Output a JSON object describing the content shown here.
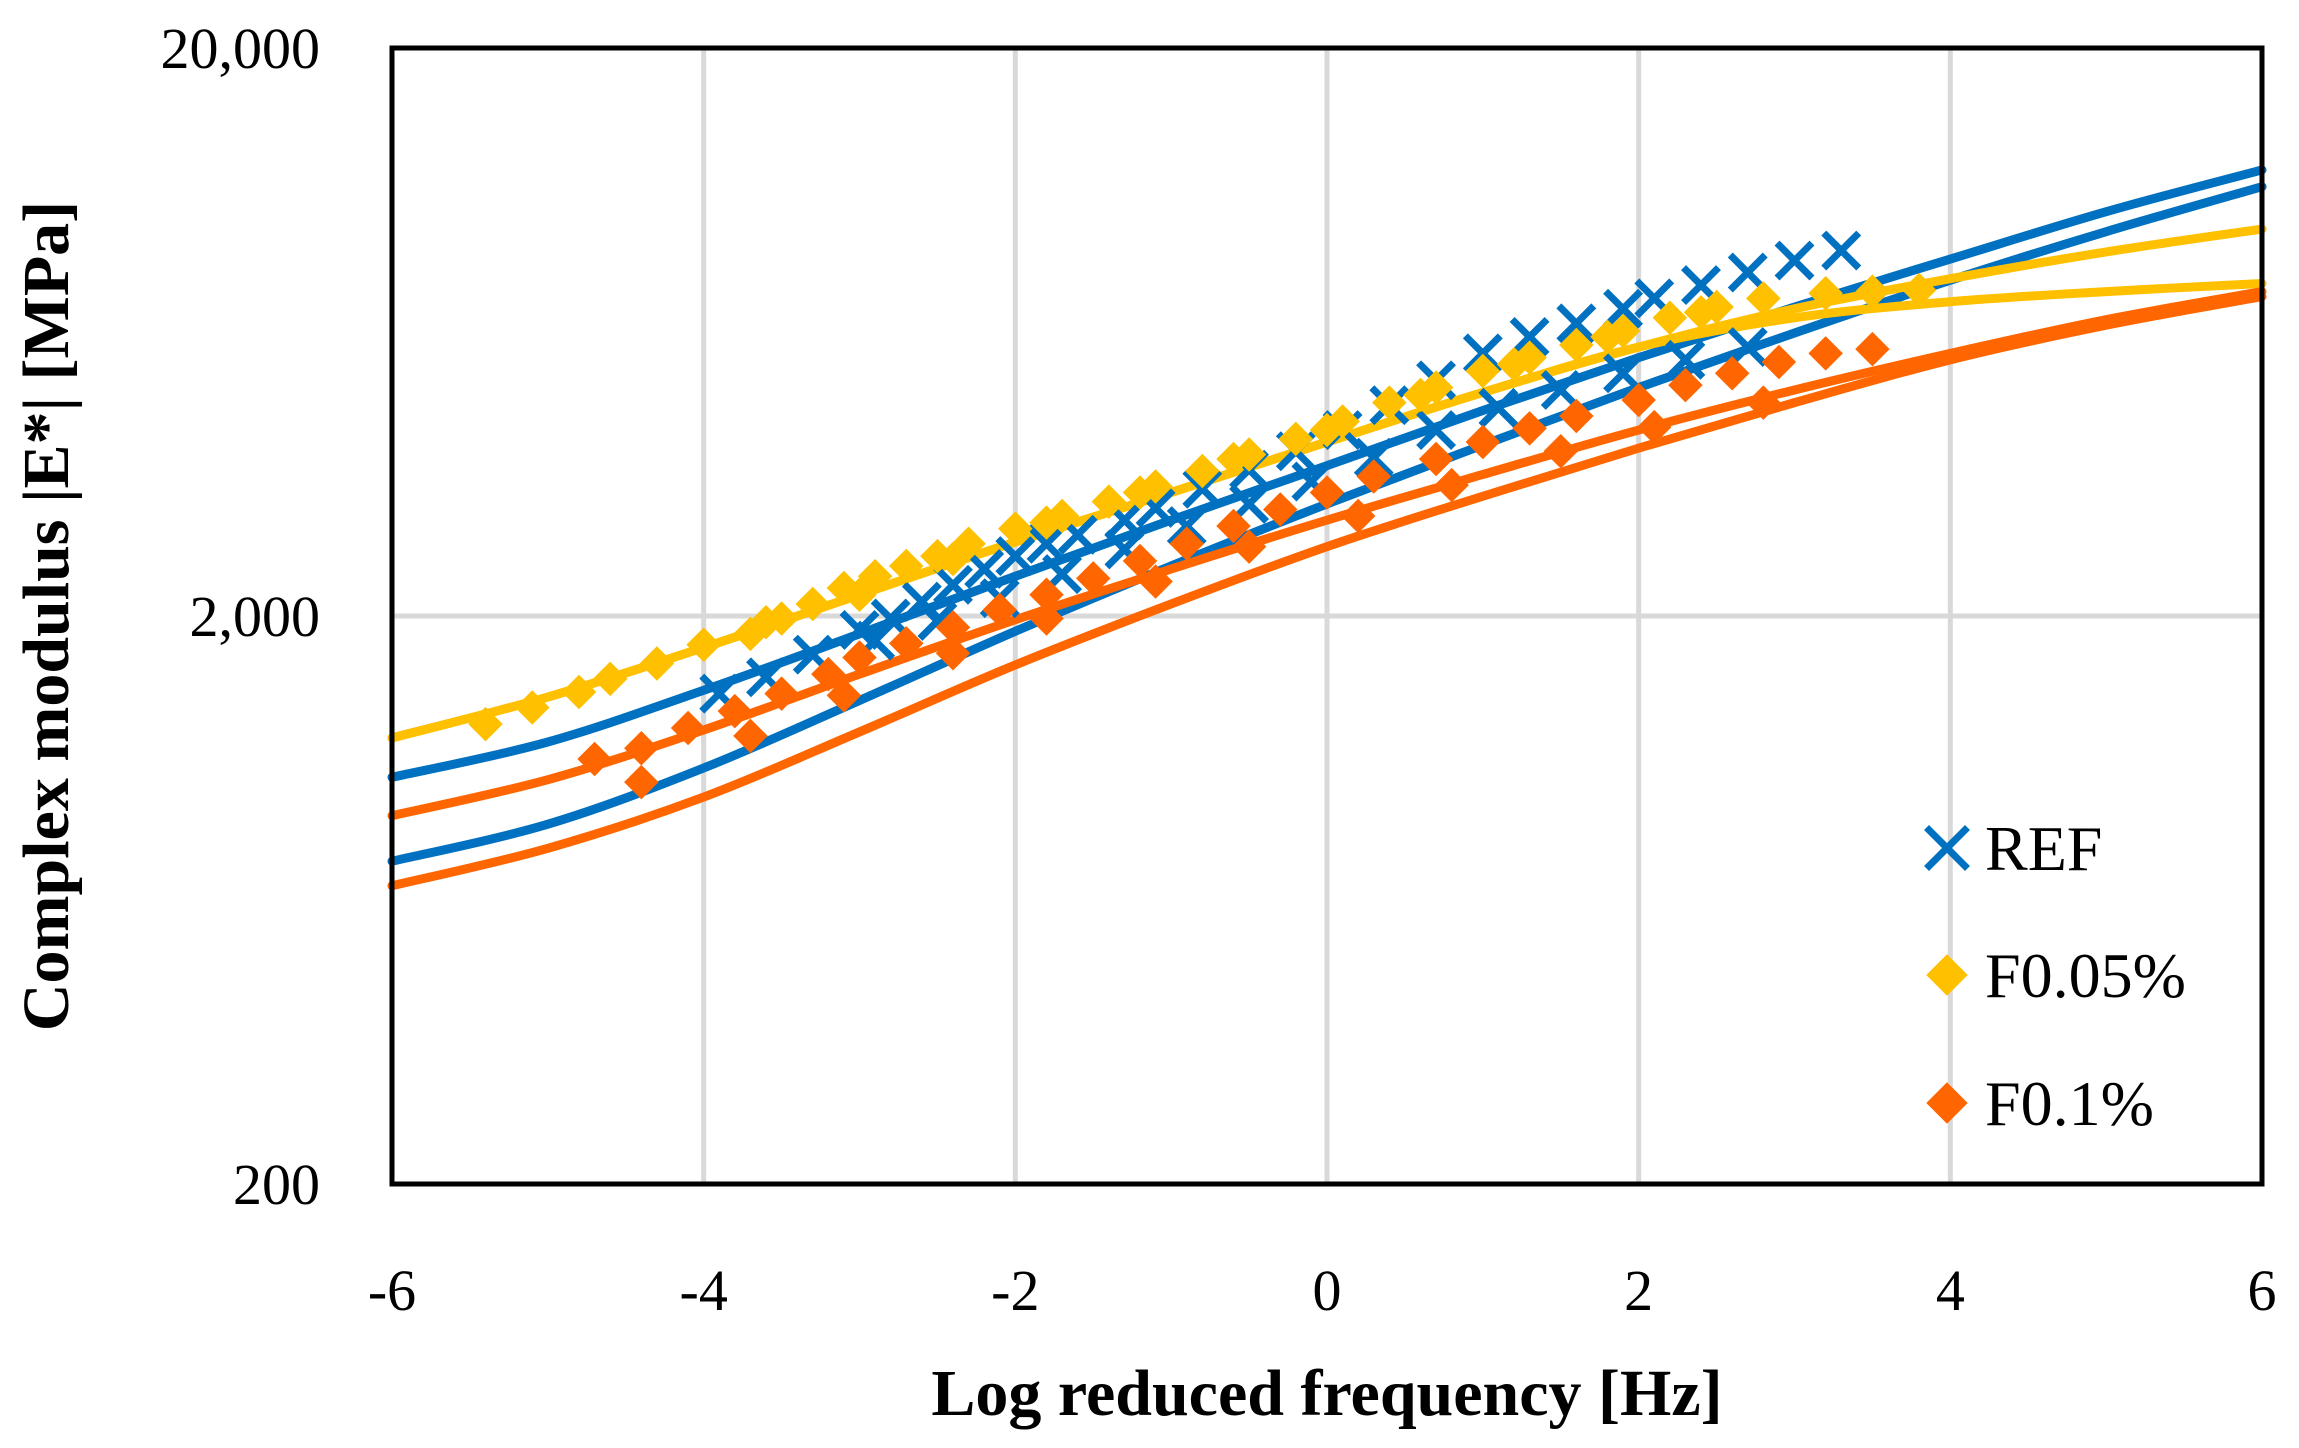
{
  "chart_data": {
    "type": "scatter",
    "title": "",
    "xlabel": "Log reduced frequency [Hz]",
    "ylabel": "Complex modulus |E*| [MPa]",
    "xlim": [
      -6,
      6
    ],
    "ylim": [
      200,
      20000
    ],
    "yscale": "log",
    "grid": true,
    "legend_position": "bottom-right",
    "x_ticks": [
      "-6",
      "-4",
      "-2",
      "0",
      "2",
      "4",
      "6"
    ],
    "y_ticks": [
      "200",
      "2,000",
      "20,000"
    ],
    "series": [
      {
        "name": "REF",
        "color": "#0070C0",
        "marker": "x",
        "points": [
          {
            "x": -3.9,
            "y": 1460
          },
          {
            "x": -3.6,
            "y": 1560
          },
          {
            "x": -3.3,
            "y": 1710
          },
          {
            "x": -3.0,
            "y": 1890
          },
          {
            "x": -2.8,
            "y": 1980
          },
          {
            "x": -2.6,
            "y": 2120
          },
          {
            "x": -2.4,
            "y": 2270
          },
          {
            "x": -2.2,
            "y": 2420
          },
          {
            "x": -2.0,
            "y": 2550
          },
          {
            "x": -1.8,
            "y": 2680
          },
          {
            "x": -1.6,
            "y": 2780
          },
          {
            "x": -1.3,
            "y": 2950
          },
          {
            "x": -1.1,
            "y": 3100
          },
          {
            "x": -0.8,
            "y": 3350
          },
          {
            "x": -0.5,
            "y": 3620
          },
          {
            "x": -0.2,
            "y": 3900
          },
          {
            "x": 0.1,
            "y": 4250
          },
          {
            "x": 0.4,
            "y": 4700
          },
          {
            "x": 0.7,
            "y": 5200
          },
          {
            "x": 1.0,
            "y": 5800
          },
          {
            "x": 1.3,
            "y": 6200
          },
          {
            "x": 1.6,
            "y": 6550
          },
          {
            "x": 1.9,
            "y": 6950
          },
          {
            "x": 2.1,
            "y": 7250
          },
          {
            "x": 2.4,
            "y": 7650
          },
          {
            "x": 2.7,
            "y": 8050
          },
          {
            "x": 3.0,
            "y": 8450
          },
          {
            "x": 3.3,
            "y": 8800
          },
          {
            "x": -2.9,
            "y": 1810
          },
          {
            "x": -2.5,
            "y": 1960
          },
          {
            "x": -2.1,
            "y": 2150
          },
          {
            "x": -1.7,
            "y": 2370
          },
          {
            "x": -1.3,
            "y": 2620
          },
          {
            "x": -0.9,
            "y": 2880
          },
          {
            "x": -0.5,
            "y": 3150
          },
          {
            "x": -0.1,
            "y": 3450
          },
          {
            "x": 0.3,
            "y": 3800
          },
          {
            "x": 0.7,
            "y": 4250
          },
          {
            "x": 1.1,
            "y": 4650
          },
          {
            "x": 1.5,
            "y": 5000
          },
          {
            "x": 1.9,
            "y": 5350
          },
          {
            "x": 2.3,
            "y": 5650
          },
          {
            "x": 2.7,
            "y": 5950
          }
        ]
      },
      {
        "name": "F0.05%",
        "color": "#FFC000",
        "marker": "diamond",
        "points": [
          {
            "x": -5.4,
            "y": 1290
          },
          {
            "x": -5.1,
            "y": 1380
          },
          {
            "x": -4.8,
            "y": 1470
          },
          {
            "x": -4.6,
            "y": 1550
          },
          {
            "x": -4.3,
            "y": 1650
          },
          {
            "x": -4.0,
            "y": 1780
          },
          {
            "x": -3.7,
            "y": 1860
          },
          {
            "x": -3.5,
            "y": 1980
          },
          {
            "x": -3.3,
            "y": 2100
          },
          {
            "x": -3.1,
            "y": 2240
          },
          {
            "x": -2.9,
            "y": 2350
          },
          {
            "x": -2.7,
            "y": 2450
          },
          {
            "x": -2.5,
            "y": 2550
          },
          {
            "x": -2.3,
            "y": 2680
          },
          {
            "x": -2.0,
            "y": 2850
          },
          {
            "x": -1.7,
            "y": 3000
          },
          {
            "x": -1.4,
            "y": 3180
          },
          {
            "x": -1.1,
            "y": 3380
          },
          {
            "x": -0.8,
            "y": 3600
          },
          {
            "x": -0.5,
            "y": 3850
          },
          {
            "x": -0.2,
            "y": 4100
          },
          {
            "x": 0.1,
            "y": 4400
          },
          {
            "x": 0.4,
            "y": 4750
          },
          {
            "x": 0.7,
            "y": 5050
          },
          {
            "x": 1.0,
            "y": 5400
          },
          {
            "x": 1.3,
            "y": 5700
          },
          {
            "x": 1.6,
            "y": 6000
          },
          {
            "x": 1.9,
            "y": 6350
          },
          {
            "x": 2.2,
            "y": 6700
          },
          {
            "x": 2.5,
            "y": 7000
          },
          {
            "x": 2.8,
            "y": 7250
          },
          {
            "x": 3.2,
            "y": 7400
          },
          {
            "x": 3.5,
            "y": 7450
          },
          {
            "x": 3.8,
            "y": 7500
          },
          {
            "x": -3.6,
            "y": 1950
          },
          {
            "x": -3.0,
            "y": 2180
          },
          {
            "x": -2.4,
            "y": 2520
          },
          {
            "x": -1.8,
            "y": 2920
          },
          {
            "x": -1.2,
            "y": 3300
          },
          {
            "x": -0.6,
            "y": 3780
          },
          {
            "x": 0.0,
            "y": 4250
          },
          {
            "x": 0.6,
            "y": 4900
          },
          {
            "x": 1.2,
            "y": 5550
          },
          {
            "x": 1.8,
            "y": 6200
          },
          {
            "x": 2.4,
            "y": 6850
          }
        ]
      },
      {
        "name": "F0.1%",
        "color": "#FF6600",
        "marker": "diamond",
        "points": [
          {
            "x": -4.7,
            "y": 1120
          },
          {
            "x": -4.4,
            "y": 1170
          },
          {
            "x": -4.1,
            "y": 1270
          },
          {
            "x": -3.8,
            "y": 1360
          },
          {
            "x": -3.5,
            "y": 1460
          },
          {
            "x": -3.2,
            "y": 1580
          },
          {
            "x": -3.0,
            "y": 1690
          },
          {
            "x": -2.7,
            "y": 1790
          },
          {
            "x": -2.4,
            "y": 1910
          },
          {
            "x": -2.1,
            "y": 2050
          },
          {
            "x": -1.8,
            "y": 2180
          },
          {
            "x": -1.5,
            "y": 2330
          },
          {
            "x": -1.2,
            "y": 2500
          },
          {
            "x": -0.9,
            "y": 2680
          },
          {
            "x": -0.6,
            "y": 2880
          },
          {
            "x": -0.3,
            "y": 3080
          },
          {
            "x": 0.0,
            "y": 3300
          },
          {
            "x": 0.3,
            "y": 3520
          },
          {
            "x": 0.7,
            "y": 3780
          },
          {
            "x": 1.0,
            "y": 4050
          },
          {
            "x": 1.3,
            "y": 4280
          },
          {
            "x": 1.6,
            "y": 4500
          },
          {
            "x": 2.0,
            "y": 4800
          },
          {
            "x": 2.3,
            "y": 5100
          },
          {
            "x": 2.6,
            "y": 5350
          },
          {
            "x": 2.9,
            "y": 5600
          },
          {
            "x": 3.2,
            "y": 5800
          },
          {
            "x": 3.5,
            "y": 5900
          },
          {
            "x": -4.4,
            "y": 1020
          },
          {
            "x": -3.7,
            "y": 1230
          },
          {
            "x": -3.1,
            "y": 1450
          },
          {
            "x": -2.4,
            "y": 1720
          },
          {
            "x": -1.8,
            "y": 1980
          },
          {
            "x": -1.1,
            "y": 2300
          },
          {
            "x": -0.5,
            "y": 2650
          },
          {
            "x": 0.2,
            "y": 3000
          },
          {
            "x": 0.8,
            "y": 3400
          },
          {
            "x": 1.5,
            "y": 3900
          },
          {
            "x": 2.1,
            "y": 4300
          },
          {
            "x": 2.8,
            "y": 4750
          }
        ]
      }
    ],
    "fit_curves": [
      {
        "series": "REF",
        "color": "#0070C0",
        "x": [
          -6,
          -5,
          -4,
          -3,
          -2,
          -1,
          0,
          1,
          2,
          3,
          4,
          5,
          6
        ],
        "y": [
          1040,
          1200,
          1480,
          1860,
          2350,
          2950,
          3680,
          4600,
          5700,
          7000,
          8500,
          10300,
          12200
        ]
      },
      {
        "series": "REF",
        "color": "#0070C0",
        "x": [
          -6,
          -5,
          -4,
          -3,
          -2,
          -1,
          0,
          1,
          2,
          3,
          4,
          5,
          6
        ],
        "y": [
          740,
          860,
          1080,
          1420,
          1880,
          2450,
          3150,
          4000,
          5050,
          6300,
          7800,
          9500,
          11400
        ]
      },
      {
        "series": "F0.05%",
        "color": "#FFC000",
        "x": [
          -6,
          -5,
          -4,
          -3,
          -2,
          -1,
          0,
          1,
          2,
          3,
          4,
          5,
          6
        ],
        "y": [
          1220,
          1440,
          1760,
          2180,
          2700,
          3300,
          4050,
          4950,
          5950,
          6950,
          7850,
          8750,
          9600
        ]
      },
      {
        "series": "F0.05%",
        "color": "#FFC000",
        "x": [
          -6,
          -5,
          -4,
          -3,
          -2,
          -1,
          0,
          1,
          2,
          3,
          4,
          5,
          6
        ],
        "y": [
          1220,
          1440,
          1760,
          2180,
          2700,
          3300,
          4050,
          4950,
          5950,
          6700,
          7150,
          7450,
          7700
        ]
      },
      {
        "series": "F0.1%",
        "color": "#FF6600",
        "x": [
          -6,
          -5,
          -4,
          -3,
          -2,
          -1,
          0,
          1,
          2,
          3,
          4,
          5,
          6
        ],
        "y": [
          890,
          1030,
          1260,
          1580,
          1970,
          2420,
          2950,
          3550,
          4250,
          5000,
          5800,
          6650,
          7450
        ]
      },
      {
        "series": "F0.1%",
        "color": "#FF6600",
        "x": [
          -6,
          -5,
          -4,
          -3,
          -2,
          -1,
          0,
          1,
          2,
          3,
          4,
          5,
          6
        ],
        "y": [
          670,
          780,
          960,
          1250,
          1640,
          2100,
          2650,
          3250,
          3950,
          4750,
          5650,
          6500,
          7300
        ]
      }
    ]
  }
}
